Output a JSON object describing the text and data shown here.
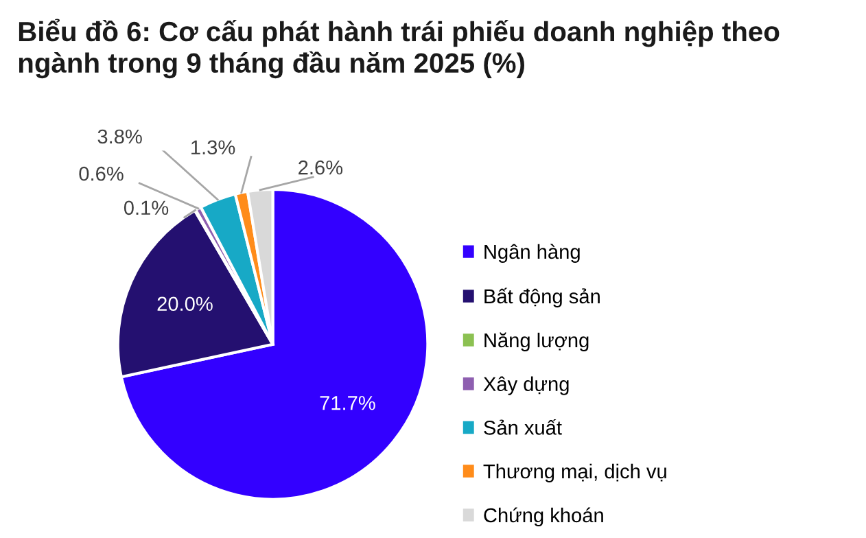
{
  "chart_data": {
    "type": "pie",
    "title": "Biểu đồ 6: Cơ cấu phát hành trái phiếu doanh nghiệp theo ngành trong 9 tháng đầu năm 2025 (%)",
    "categories": [
      "Ngân hàng",
      "Bất động sản",
      "Năng lượng",
      "Xây dựng",
      "Sản xuất",
      "Thương mại, dịch vụ",
      "Chứng khoán"
    ],
    "values": [
      71.7,
      20.0,
      0.1,
      0.6,
      3.8,
      1.3,
      2.6
    ],
    "colors": [
      "#3300ff",
      "#241070",
      "#8cc152",
      "#8e5fb0",
      "#17a9c6",
      "#ff8c1a",
      "#d9d9d9"
    ],
    "value_labels": [
      "71.7%",
      "20.0%",
      "0.1%",
      "0.6%",
      "3.8%",
      "1.3%",
      "2.6%"
    ],
    "legend": "right"
  }
}
